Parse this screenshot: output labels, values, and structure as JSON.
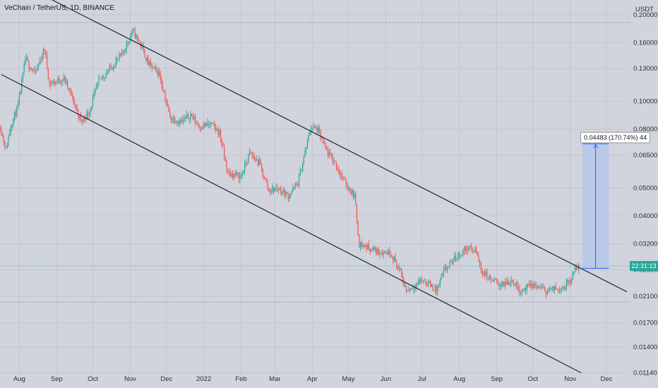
{
  "header": {
    "symbol": "VeChain / TetherUS, 1D, BINANCE"
  },
  "price_axis": {
    "currency": "USDT",
    "labels": [
      "0.20000",
      "0.16000",
      "0.13000",
      "0.10000",
      "0.08000",
      "0.06500",
      "0.05000",
      "0.04000",
      "0.03200",
      "0.02600",
      "0.02100",
      "0.01700",
      "0.01400",
      "0.01140"
    ]
  },
  "time_axis": {
    "labels": [
      "Aug",
      "Sep",
      "Oct",
      "Nov",
      "Dec",
      "2022",
      "Feb",
      "Mar",
      "Apr",
      "May",
      "Jun",
      "Jul",
      "Aug",
      "Sep",
      "Oct",
      "Nov",
      "Dec"
    ]
  },
  "current_price_tag": "22:31:13",
  "measure_label": "0.04483 (170.74%) 44",
  "colors": {
    "background": "#d1d4dc",
    "up": "#26a69a",
    "down": "#ef5350",
    "trendline": "#131722",
    "measure_fill": "#b3c6ee",
    "measure_line": "#2962ff",
    "price_line": "#26a69a",
    "level_line": "#787b86"
  },
  "chart_data": {
    "type": "candlestick",
    "title": "VeChain / TetherUS, 1D, BINANCE",
    "y_unit": "USDT",
    "y_scale": "log",
    "ylim": [
      0.0113,
      0.225
    ],
    "xlim": [
      "2021-07-16",
      "2022-12-18"
    ],
    "x_ticks": [
      "2021-08-01",
      "2021-09-01",
      "2021-10-01",
      "2021-11-01",
      "2021-12-01",
      "2022-01-01",
      "2022-02-01",
      "2022-03-01",
      "2022-04-01",
      "2022-05-01",
      "2022-06-01",
      "2022-07-01",
      "2022-08-01",
      "2022-09-01",
      "2022-10-01",
      "2022-11-01",
      "2022-12-01"
    ],
    "y_ticks": [
      0.2,
      0.16,
      0.13,
      0.1,
      0.08,
      0.065,
      0.05,
      0.04,
      0.032,
      0.026,
      0.021,
      0.017,
      0.014,
      0.0114
    ],
    "grid": true,
    "close_path": [
      [
        "2021-07-16",
        0.082
      ],
      [
        "2021-07-21",
        0.068
      ],
      [
        "2021-07-25",
        0.083
      ],
      [
        "2021-07-31",
        0.096
      ],
      [
        "2021-08-06",
        0.14
      ],
      [
        "2021-08-14",
        0.125
      ],
      [
        "2021-08-22",
        0.152
      ],
      [
        "2021-08-26",
        0.115
      ],
      [
        "2021-09-07",
        0.12
      ],
      [
        "2021-09-15",
        0.1
      ],
      [
        "2021-09-21",
        0.085
      ],
      [
        "2021-09-28",
        0.092
      ],
      [
        "2021-10-06",
        0.118
      ],
      [
        "2021-10-14",
        0.128
      ],
      [
        "2021-10-25",
        0.145
      ],
      [
        "2021-11-03",
        0.175
      ],
      [
        "2021-11-09",
        0.16
      ],
      [
        "2021-11-16",
        0.135
      ],
      [
        "2021-11-25",
        0.125
      ],
      [
        "2021-12-04",
        0.088
      ],
      [
        "2021-12-14",
        0.085
      ],
      [
        "2021-12-21",
        0.09
      ],
      [
        "2021-12-28",
        0.082
      ],
      [
        "2022-01-07",
        0.083
      ],
      [
        "2022-01-14",
        0.078
      ],
      [
        "2022-01-21",
        0.056
      ],
      [
        "2022-02-01",
        0.055
      ],
      [
        "2022-02-08",
        0.066
      ],
      [
        "2022-02-16",
        0.061
      ],
      [
        "2022-02-24",
        0.049
      ],
      [
        "2022-03-03",
        0.05
      ],
      [
        "2022-03-12",
        0.047
      ],
      [
        "2022-03-20",
        0.052
      ],
      [
        "2022-03-31",
        0.082
      ],
      [
        "2022-04-06",
        0.079
      ],
      [
        "2022-04-12",
        0.068
      ],
      [
        "2022-04-20",
        0.061
      ],
      [
        "2022-04-27",
        0.053
      ],
      [
        "2022-05-06",
        0.047
      ],
      [
        "2022-05-10",
        0.032
      ],
      [
        "2022-05-18",
        0.031
      ],
      [
        "2022-05-26",
        0.03
      ],
      [
        "2022-06-05",
        0.03
      ],
      [
        "2022-06-12",
        0.026
      ],
      [
        "2022-06-18",
        0.022
      ],
      [
        "2022-06-25",
        0.023
      ],
      [
        "2022-07-01",
        0.024
      ],
      [
        "2022-07-08",
        0.023
      ],
      [
        "2022-07-13",
        0.022
      ],
      [
        "2022-07-20",
        0.026
      ],
      [
        "2022-07-30",
        0.029
      ],
      [
        "2022-08-08",
        0.031
      ],
      [
        "2022-08-15",
        0.03
      ],
      [
        "2022-08-19",
        0.026
      ],
      [
        "2022-08-27",
        0.024
      ],
      [
        "2022-09-06",
        0.023
      ],
      [
        "2022-09-13",
        0.024
      ],
      [
        "2022-09-21",
        0.022
      ],
      [
        "2022-10-01",
        0.023
      ],
      [
        "2022-10-12",
        0.022
      ],
      [
        "2022-10-25",
        0.0225
      ],
      [
        "2022-11-01",
        0.024
      ],
      [
        "2022-11-05",
        0.026
      ],
      [
        "2022-11-08",
        0.0268
      ]
    ],
    "trendlines": [
      {
        "name": "upper-channel",
        "from": [
          "2021-08-24",
          0.23
        ],
        "to": [
          "2022-12-18",
          0.0218
        ]
      },
      {
        "name": "lower-channel",
        "from": [
          "2021-07-17",
          0.124
        ],
        "to": [
          "2022-11-10",
          0.0114
        ]
      }
    ],
    "horizontal_levels": [
      0.188,
      0.0201
    ],
    "measure": {
      "from_date": "2022-11-11",
      "to_date": "2022-12-03",
      "low": 0.0263,
      "high": 0.0712,
      "label": "0.04483 (170.74%) 44"
    },
    "current_price": 0.0268
  }
}
